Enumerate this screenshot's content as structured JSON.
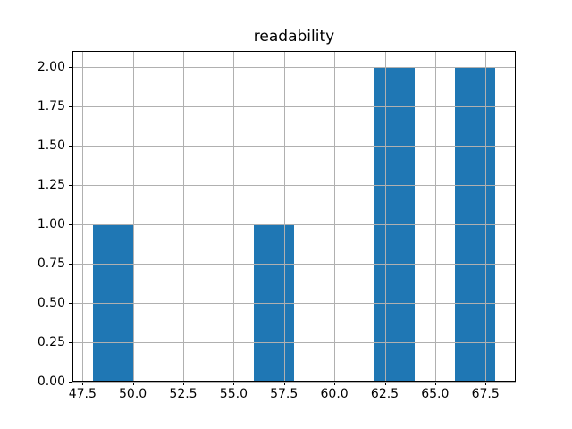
{
  "figure": {
    "background": "#ffffff"
  },
  "chart_data": {
    "type": "bar",
    "subtype": "histogram",
    "title": "readability",
    "xlabel": "",
    "ylabel": "",
    "bin_edges": [
      48,
      50,
      52,
      54,
      56,
      58,
      60,
      62,
      64,
      66,
      68
    ],
    "counts": [
      1,
      0,
      0,
      0,
      1,
      0,
      0,
      2,
      0,
      2
    ],
    "bars": [
      {
        "x_start": 48,
        "x_end": 50,
        "value": 1
      },
      {
        "x_start": 56,
        "x_end": 58,
        "value": 1
      },
      {
        "x_start": 62,
        "x_end": 64,
        "value": 2
      },
      {
        "x_start": 66,
        "x_end": 68,
        "value": 2
      }
    ],
    "xlim": [
      47,
      69
    ],
    "ylim": [
      0,
      2.1
    ],
    "x_ticks": [
      47.5,
      50.0,
      52.5,
      55.0,
      57.5,
      60.0,
      62.5,
      65.0,
      67.5
    ],
    "x_tick_labels": [
      "47.5",
      "50.0",
      "52.5",
      "55.0",
      "57.5",
      "60.0",
      "62.5",
      "65.0",
      "67.5"
    ],
    "y_ticks": [
      0.0,
      0.25,
      0.5,
      0.75,
      1.0,
      1.25,
      1.5,
      1.75,
      2.0
    ],
    "y_tick_labels": [
      "0.00",
      "0.25",
      "0.50",
      "0.75",
      "1.00",
      "1.25",
      "1.50",
      "1.75",
      "2.00"
    ],
    "grid": true,
    "grid_position": "above-bars",
    "legend": null,
    "colors": {
      "bar": "#1f77b4",
      "grid": "#b0b0b0",
      "spine": "#000000",
      "text": "#000000"
    }
  }
}
